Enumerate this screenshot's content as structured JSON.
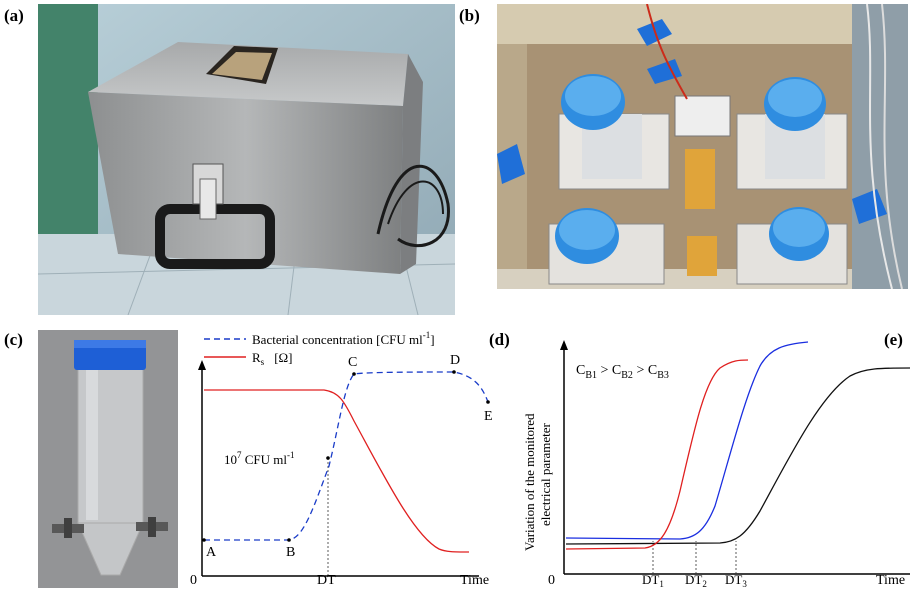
{
  "panels": {
    "a": "(a)",
    "b": "(b)",
    "c": "(c)",
    "d": "(d)",
    "e": "(e)"
  },
  "colors": {
    "rs_curve": "#e02020",
    "bacteria_curve": "#1a3cc8",
    "cb1": "#e02020",
    "cb2": "#1a2ee0",
    "cb3": "#111111"
  },
  "chart_data": [
    {
      "type": "line",
      "title": "",
      "xlabel": "Time",
      "ylabel": "",
      "origin_label": "0",
      "x_ticks": [
        "DT"
      ],
      "legend": [
        {
          "name": "Bacterial concentration [CFU ml",
          "sup": "-1",
          "suffix": "]",
          "style": "dashed",
          "color": "#1a3cc8"
        },
        {
          "name": "R",
          "sub": "s",
          "suffix": "[Ω]",
          "style": "solid",
          "color": "#e02020"
        }
      ],
      "annotation": {
        "text": "10",
        "sup1": "7",
        "mid": " CFU ml",
        "sup2": "-1"
      },
      "point_labels": [
        "A",
        "B",
        "C",
        "D",
        "E"
      ],
      "series": [
        {
          "name": "Bacterial concentration",
          "x": [
            0,
            0.32,
            0.45,
            0.52,
            0.8,
            0.94
          ],
          "y": [
            0.05,
            0.05,
            0.55,
            0.98,
            0.98,
            0.62
          ]
        },
        {
          "name": "Rs",
          "x": [
            0,
            0.45,
            0.5,
            0.75,
            0.98
          ],
          "y": [
            0.9,
            0.9,
            0.85,
            0.2,
            0.05
          ]
        }
      ]
    },
    {
      "type": "line",
      "title": "",
      "xlabel": "Time",
      "ylabel": "Variation of the monitored electrical parameter",
      "origin_label": "0",
      "x_ticks": [
        "DT1",
        "DT2",
        "DT3"
      ],
      "legend_text": {
        "prefix": "C",
        "parts": [
          "B1",
          "B2",
          "B3"
        ],
        "sep": " > "
      },
      "series": [
        {
          "name": "CB1",
          "color": "#e02020"
        },
        {
          "name": "CB2",
          "color": "#1a2ee0"
        },
        {
          "name": "CB3",
          "color": "#111111"
        }
      ]
    }
  ],
  "chart_c": {
    "xlabel": "Time",
    "origin": "0",
    "dt": "DT",
    "legend_bact": "Bacterial concentration [CFU ml",
    "legend_bact_sup": "-1",
    "legend_bact_end": "]",
    "legend_rs": "R",
    "legend_rs_sub": "s",
    "legend_rs_unit": "[Ω]",
    "annot_base": "10",
    "annot_sup": "7",
    "annot_mid": " CFU ml",
    "annot_sup2": "-1",
    "pA": "A",
    "pB": "B",
    "pC": "C",
    "pD": "D",
    "pE": "E"
  },
  "chart_d": {
    "xlabel": "Time",
    "origin": "0",
    "ylabel_line1": "Variation of the monitored",
    "ylabel_line2": "electrical parameter",
    "c": "C",
    "b1": "B1",
    "b2": "B2",
    "b3": "B3",
    "gt": " > ",
    "dt": "DT",
    "s1": "1",
    "s2": "2",
    "s3": "3"
  }
}
